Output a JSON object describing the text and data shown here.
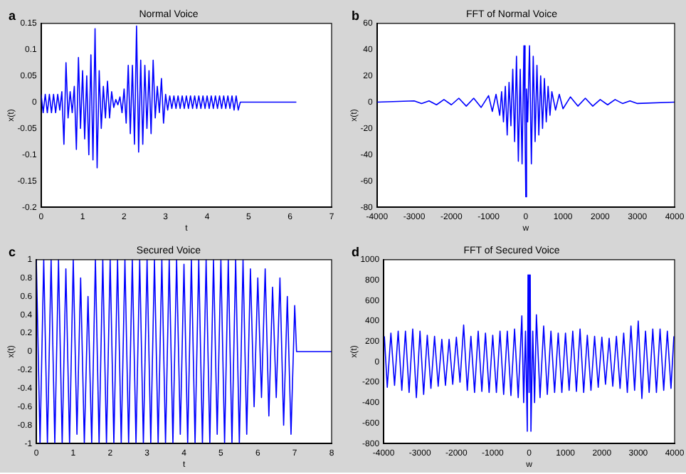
{
  "chart_data": [
    {
      "type": "line",
      "title": "Normal Voice",
      "xlabel": "t",
      "ylabel": "x(t)",
      "annotations": [
        "a"
      ],
      "xlim": [
        0,
        7
      ],
      "xticks": [
        0,
        1,
        2,
        3,
        4,
        5,
        6,
        7
      ],
      "ylim": [
        -0.2,
        0.15
      ],
      "yticks": [
        -0.2,
        -0.15,
        -0.1,
        -0.05,
        0,
        0.05,
        0.1,
        0.15
      ],
      "series": [
        {
          "color": "#0000ff",
          "x": [
            0,
            0.05,
            0.1,
            0.15,
            0.2,
            0.25,
            0.3,
            0.35,
            0.4,
            0.45,
            0.5,
            0.55,
            0.6,
            0.65,
            0.7,
            0.75,
            0.8,
            0.85,
            0.9,
            0.95,
            1.0,
            1.05,
            1.1,
            1.15,
            1.2,
            1.25,
            1.3,
            1.35,
            1.4,
            1.45,
            1.5,
            1.55,
            1.6,
            1.65,
            1.7,
            1.75,
            1.8,
            1.85,
            1.9,
            1.95,
            2.0,
            2.05,
            2.1,
            2.15,
            2.2,
            2.25,
            2.3,
            2.35,
            2.4,
            2.45,
            2.5,
            2.55,
            2.6,
            2.65,
            2.7,
            2.75,
            2.8,
            2.85,
            2.9,
            2.95,
            3.0,
            3.05,
            3.1,
            3.15,
            3.2,
            3.25,
            3.3,
            3.35,
            3.4,
            3.45,
            3.5,
            3.55,
            3.6,
            3.65,
            3.7,
            3.75,
            3.8,
            3.85,
            3.9,
            3.95,
            4.0,
            4.05,
            4.1,
            4.15,
            4.2,
            4.25,
            4.3,
            4.35,
            4.4,
            4.45,
            4.5,
            4.55,
            4.6,
            4.65,
            4.7,
            4.75,
            4.8,
            6.15
          ],
          "values": [
            0.015,
            -0.02,
            0.015,
            -0.02,
            0.015,
            -0.02,
            0.015,
            -0.02,
            0.015,
            -0.015,
            0.02,
            -0.08,
            0.075,
            -0.03,
            0.02,
            -0.02,
            0.03,
            -0.09,
            0.085,
            -0.05,
            0.06,
            -0.07,
            0.05,
            -0.1,
            0.09,
            -0.11,
            0.14,
            -0.125,
            0.06,
            -0.05,
            0.03,
            -0.03,
            0.04,
            -0.03,
            0.02,
            -0.01,
            0.005,
            -0.005,
            0.01,
            -0.02,
            0.025,
            -0.04,
            0.07,
            -0.06,
            0.07,
            -0.08,
            0.145,
            -0.095,
            0.08,
            -0.08,
            0.07,
            -0.05,
            0.06,
            -0.06,
            0.08,
            -0.03,
            0.03,
            -0.02,
            0.045,
            -0.04,
            0.015,
            -0.015,
            0.012,
            -0.012,
            0.012,
            -0.012,
            0.012,
            -0.012,
            0.012,
            -0.012,
            0.012,
            -0.012,
            0.012,
            -0.012,
            0.012,
            -0.012,
            0.012,
            -0.012,
            0.012,
            -0.012,
            0.012,
            -0.012,
            0.012,
            -0.012,
            0.012,
            -0.012,
            0.012,
            -0.012,
            0.012,
            -0.012,
            0.012,
            -0.012,
            0.012,
            -0.015,
            0.012,
            -0.015,
            0,
            0
          ]
        }
      ]
    },
    {
      "type": "line",
      "title": "FFT of Normal Voice",
      "xlabel": "w",
      "ylabel": "x(t)",
      "annotations": [
        "b"
      ],
      "xlim": [
        -4000,
        4000
      ],
      "xticks": [
        -4000,
        -3000,
        -2000,
        -1000,
        0,
        1000,
        2000,
        3000,
        4000
      ],
      "ylim": [
        -80,
        60
      ],
      "yticks": [
        -80,
        -60,
        -40,
        -20,
        0,
        20,
        40,
        60
      ],
      "series": [
        {
          "color": "#0000ff",
          "x": [
            -4000,
            -3000,
            -2800,
            -2600,
            -2400,
            -2200,
            -2000,
            -1800,
            -1600,
            -1400,
            -1200,
            -1000,
            -900,
            -800,
            -700,
            -650,
            -600,
            -550,
            -500,
            -450,
            -400,
            -350,
            -300,
            -250,
            -200,
            -150,
            -100,
            -50,
            -20,
            0,
            20,
            50,
            100,
            150,
            200,
            250,
            300,
            350,
            400,
            450,
            500,
            550,
            600,
            650,
            700,
            800,
            900,
            1000,
            1200,
            1400,
            1600,
            1800,
            2000,
            2200,
            2400,
            2600,
            2800,
            3000,
            4000
          ],
          "values": [
            0,
            1,
            -1,
            1,
            -2,
            2,
            -2,
            3,
            -3,
            3,
            -4,
            5,
            -7,
            6,
            -10,
            8,
            -15,
            12,
            -25,
            15,
            -18,
            25,
            -30,
            35,
            -45,
            25,
            -47,
            43,
            -20,
            -72,
            10,
            -15,
            43,
            -47,
            35,
            -30,
            28,
            -25,
            20,
            -20,
            18,
            -15,
            12,
            -10,
            8,
            -6,
            6,
            -5,
            4,
            -3,
            3,
            -3,
            2,
            -2,
            2,
            -1,
            1,
            -1,
            0
          ]
        }
      ]
    },
    {
      "type": "line",
      "title": "Secured Voice",
      "xlabel": "t",
      "ylabel": "x(t)",
      "annotations": [
        "c"
      ],
      "xlim": [
        0,
        8
      ],
      "xticks": [
        0,
        1,
        2,
        3,
        4,
        5,
        6,
        7,
        8
      ],
      "ylim": [
        -1,
        1
      ],
      "yticks": [
        -1,
        -0.8,
        -0.6,
        -0.4,
        -0.2,
        0,
        0.2,
        0.4,
        0.6,
        0.8,
        1
      ],
      "series": [
        {
          "color": "#0000ff",
          "x": [
            0,
            0.1,
            0.2,
            0.3,
            0.4,
            0.5,
            0.6,
            0.7,
            0.8,
            0.9,
            1.0,
            1.1,
            1.2,
            1.3,
            1.4,
            1.5,
            1.6,
            1.7,
            1.8,
            1.9,
            2.0,
            2.1,
            2.2,
            2.3,
            2.4,
            2.5,
            2.6,
            2.7,
            2.8,
            2.9,
            3.0,
            3.1,
            3.2,
            3.3,
            3.4,
            3.5,
            3.6,
            3.7,
            3.8,
            3.9,
            4.0,
            4.1,
            4.2,
            4.3,
            4.4,
            4.5,
            4.6,
            4.7,
            4.8,
            4.9,
            5.0,
            5.1,
            5.2,
            5.3,
            5.4,
            5.5,
            5.6,
            5.7,
            5.8,
            5.9,
            6.0,
            6.1,
            6.2,
            6.3,
            6.4,
            6.5,
            6.6,
            6.7,
            6.8,
            6.9,
            7.0,
            7.05,
            8
          ],
          "values": [
            1,
            -1,
            1,
            -1,
            1,
            -1,
            1,
            -1,
            0.9,
            -1,
            1,
            -0.9,
            0.8,
            -1,
            0.6,
            -1,
            1,
            -1,
            1,
            -1,
            1,
            -1,
            1,
            -1,
            1,
            -1,
            1,
            -1,
            1,
            -1,
            1,
            -1,
            1,
            -1,
            1,
            -1,
            1,
            -1,
            1,
            -0.9,
            0.95,
            -1,
            1,
            -1,
            1,
            -1,
            1,
            -1,
            1,
            -0.9,
            1,
            -1,
            1,
            -1,
            1,
            -1,
            1,
            -0.9,
            0.9,
            -0.6,
            0.8,
            -0.5,
            0.9,
            -0.7,
            0.7,
            -0.5,
            0.8,
            -0.8,
            0.6,
            -0.9,
            0.5,
            0,
            0
          ]
        }
      ]
    },
    {
      "type": "line",
      "title": "FFT of Secured Voice",
      "xlabel": "w",
      "ylabel": "x(t)",
      "annotations": [
        "d"
      ],
      "xlim": [
        -4000,
        4000
      ],
      "xticks": [
        -4000,
        -3000,
        -2000,
        -1000,
        0,
        1000,
        2000,
        3000,
        4000
      ],
      "ylim": [
        -800,
        1000
      ],
      "yticks": [
        -800,
        -600,
        -400,
        -200,
        0,
        200,
        400,
        600,
        800,
        1000
      ],
      "series": [
        {
          "color": "#0000ff",
          "x": [
            -3980,
            -3900,
            -3800,
            -3700,
            -3600,
            -3500,
            -3400,
            -3300,
            -3200,
            -3100,
            -3000,
            -2900,
            -2800,
            -2700,
            -2600,
            -2500,
            -2400,
            -2300,
            -2200,
            -2100,
            -2000,
            -1900,
            -1800,
            -1700,
            -1600,
            -1500,
            -1400,
            -1300,
            -1200,
            -1100,
            -1000,
            -900,
            -800,
            -700,
            -600,
            -500,
            -400,
            -300,
            -200,
            -150,
            -100,
            -50,
            -30,
            0,
            30,
            50,
            100,
            150,
            200,
            300,
            400,
            500,
            600,
            700,
            800,
            900,
            1000,
            1100,
            1200,
            1300,
            1400,
            1500,
            1600,
            1700,
            1800,
            1900,
            2000,
            2100,
            2200,
            2300,
            2400,
            2500,
            2600,
            2700,
            2800,
            2900,
            3000,
            3100,
            3200,
            3300,
            3400,
            3500,
            3600,
            3700,
            3800,
            3900,
            3980
          ],
          "values": [
            250,
            -250,
            280,
            -230,
            300,
            -280,
            300,
            -300,
            320,
            -350,
            300,
            -320,
            260,
            -260,
            250,
            -240,
            220,
            -230,
            220,
            -220,
            240,
            -200,
            360,
            -280,
            250,
            -300,
            300,
            -290,
            280,
            -300,
            260,
            -300,
            300,
            -320,
            300,
            -330,
            320,
            -350,
            450,
            -400,
            300,
            -680,
            850,
            -300,
            850,
            -680,
            300,
            -400,
            460,
            -350,
            350,
            -320,
            300,
            -300,
            280,
            -300,
            280,
            -280,
            300,
            -290,
            320,
            -300,
            260,
            -280,
            250,
            -250,
            240,
            -220,
            230,
            -240,
            250,
            -260,
            280,
            -300,
            350,
            -280,
            400,
            -360,
            300,
            -300,
            320,
            -300,
            320,
            -280,
            300,
            -260,
            250
          ]
        }
      ]
    }
  ]
}
